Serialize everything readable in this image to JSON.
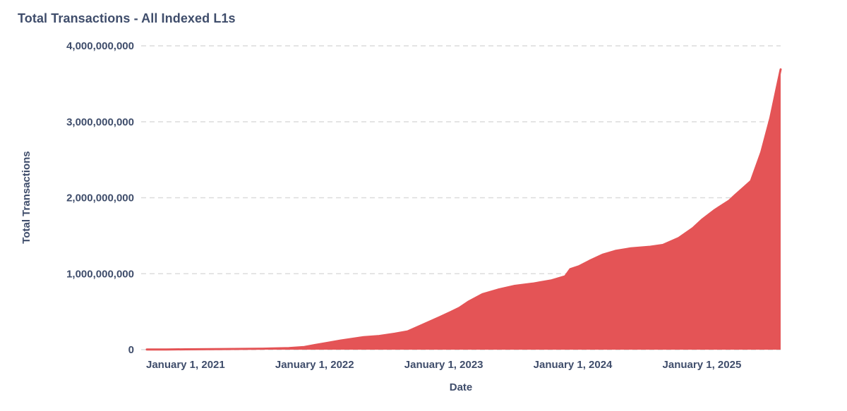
{
  "chart_data": {
    "type": "area",
    "title": "Total Transactions - All Indexed L1s",
    "xlabel": "Date",
    "ylabel": "Total Transactions",
    "units": "transactions (values stored in billions)",
    "legend": "none",
    "grid": "horizontal-dashed",
    "ylim": [
      0,
      4000000000
    ],
    "x_domain_decimal_years": [
      2020.7,
      2025.61
    ],
    "y_ticks": [
      {
        "value": 0.0,
        "label": "0"
      },
      {
        "value": 1.0,
        "label": "1,000,000,000"
      },
      {
        "value": 2.0,
        "label": "2,000,000,000"
      },
      {
        "value": 3.0,
        "label": "3,000,000,000"
      },
      {
        "value": 4.0,
        "label": "4,000,000,000"
      }
    ],
    "x_ticks": [
      {
        "t": 2021.0,
        "label": "January 1, 2021"
      },
      {
        "t": 2022.0,
        "label": "January 1, 2022"
      },
      {
        "t": 2023.0,
        "label": "January 1, 2023"
      },
      {
        "t": 2024.0,
        "label": "January 1, 2024"
      },
      {
        "t": 2025.0,
        "label": "January 1, 2025"
      }
    ],
    "points_decimal_year_vs_billions": [
      [
        2020.7,
        0.002
      ],
      [
        2020.85,
        0.003
      ],
      [
        2021.0,
        0.005
      ],
      [
        2021.3,
        0.008
      ],
      [
        2021.6,
        0.013
      ],
      [
        2021.8,
        0.02
      ],
      [
        2021.92,
        0.035
      ],
      [
        2022.0,
        0.06
      ],
      [
        2022.1,
        0.09
      ],
      [
        2022.2,
        0.12
      ],
      [
        2022.38,
        0.165
      ],
      [
        2022.5,
        0.18
      ],
      [
        2022.62,
        0.21
      ],
      [
        2022.72,
        0.24
      ],
      [
        2022.84,
        0.33
      ],
      [
        2022.97,
        0.43
      ],
      [
        2023.06,
        0.5
      ],
      [
        2023.12,
        0.55
      ],
      [
        2023.19,
        0.63
      ],
      [
        2023.3,
        0.73
      ],
      [
        2023.42,
        0.79
      ],
      [
        2023.55,
        0.84
      ],
      [
        2023.69,
        0.87
      ],
      [
        2023.83,
        0.91
      ],
      [
        2023.94,
        0.965
      ],
      [
        2023.98,
        1.06
      ],
      [
        2024.05,
        1.1
      ],
      [
        2024.13,
        1.17
      ],
      [
        2024.23,
        1.25
      ],
      [
        2024.33,
        1.3
      ],
      [
        2024.45,
        1.335
      ],
      [
        2024.6,
        1.355
      ],
      [
        2024.7,
        1.38
      ],
      [
        2024.82,
        1.47
      ],
      [
        2024.93,
        1.6
      ],
      [
        2025.0,
        1.71
      ],
      [
        2025.1,
        1.84
      ],
      [
        2025.21,
        1.96
      ],
      [
        2025.26,
        2.04
      ],
      [
        2025.32,
        2.13
      ],
      [
        2025.38,
        2.22
      ],
      [
        2025.46,
        2.6
      ],
      [
        2025.53,
        3.05
      ],
      [
        2025.58,
        3.45
      ],
      [
        2025.61,
        3.69
      ]
    ],
    "colors": {
      "fill": "#e45456",
      "label": "#3f4d6b",
      "grid": "#dcdcdc",
      "background": "#ffffff"
    }
  }
}
